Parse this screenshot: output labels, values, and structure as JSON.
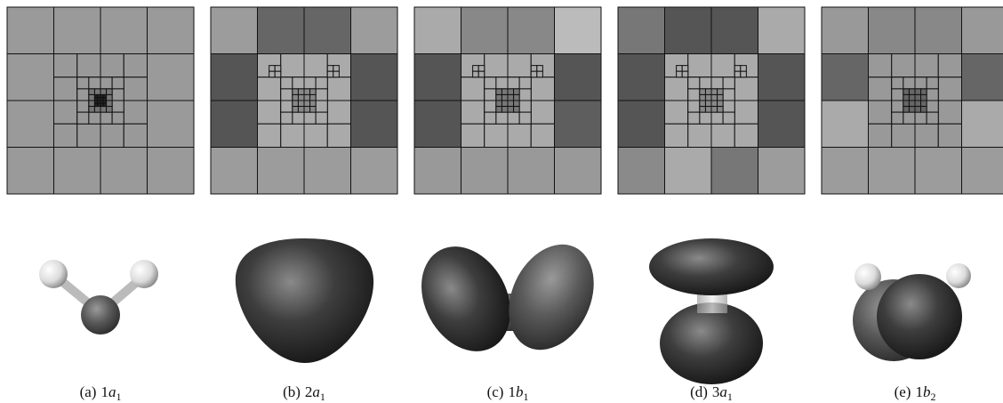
{
  "figure": {
    "panels": [
      {
        "caption": {
          "label": "(a)",
          "index": "1",
          "symbol": "a",
          "subscript": "1"
        }
      },
      {
        "caption": {
          "label": "(b)",
          "index": "2",
          "symbol": "a",
          "subscript": "1"
        }
      },
      {
        "caption": {
          "label": "(c)",
          "index": "1",
          "symbol": "b",
          "subscript": "1"
        }
      },
      {
        "caption": {
          "label": "(d)",
          "index": "3",
          "symbol": "a",
          "subscript": "1"
        }
      },
      {
        "caption": {
          "label": "(e)",
          "index": "1",
          "symbol": "b",
          "subscript": "2"
        }
      }
    ]
  }
}
